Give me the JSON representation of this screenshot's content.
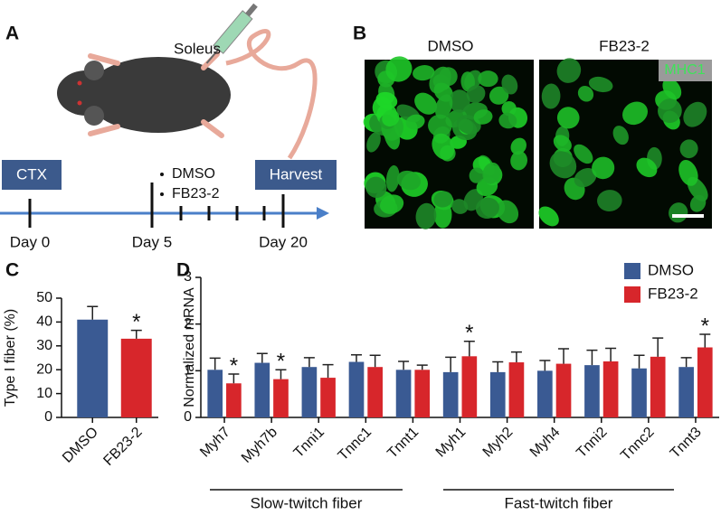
{
  "panels": {
    "a": {
      "label": "A",
      "injection_site": "Soleus",
      "timeline": {
        "start": "CTX",
        "end": "Harvest",
        "treatments": [
          "DMSO",
          "FB23-2"
        ],
        "days": [
          "Day 0",
          "Day 5",
          "Day 20"
        ]
      }
    },
    "b": {
      "label": "B",
      "columns": [
        "DMSO",
        "FB23-2"
      ],
      "stain": "MHC1"
    }
  },
  "chart_data": [
    {
      "type": "bar",
      "panel_label": "C",
      "y_label": "Type I fiber (%)",
      "categories": [
        "DMSO",
        "FB23-2"
      ],
      "values": [
        41,
        33
      ],
      "errors": [
        5.5,
        3.5
      ],
      "colors": [
        "#3a5a93",
        "#d7262b"
      ],
      "annotations": [
        null,
        "*"
      ],
      "ylim": [
        0,
        50
      ],
      "yticks": [
        0,
        10,
        20,
        30,
        40,
        50
      ]
    },
    {
      "type": "bar",
      "panel_label": "D",
      "y_label": "Normalized mRNA",
      "categories": [
        "Myh7",
        "Myh7b",
        "Tnni1",
        "Tnnc1",
        "Tnnt1",
        "Myh1",
        "Myh2",
        "Myh4",
        "Tnni2",
        "Tnnc2",
        "Tnnt3"
      ],
      "series": [
        {
          "name": "DMSO",
          "color": "#3a5a93",
          "values": [
            1.02,
            1.17,
            1.08,
            1.19,
            1.02,
            0.97,
            0.97,
            1.0,
            1.12,
            1.05,
            1.08
          ],
          "errors": [
            0.25,
            0.2,
            0.2,
            0.15,
            0.18,
            0.32,
            0.22,
            0.22,
            0.32,
            0.28,
            0.2
          ],
          "annotations": [
            null,
            null,
            null,
            null,
            null,
            null,
            null,
            null,
            null,
            null,
            null
          ]
        },
        {
          "name": "FB23-2",
          "color": "#d7262b",
          "values": [
            0.73,
            0.82,
            0.85,
            1.08,
            1.02,
            1.31,
            1.18,
            1.15,
            1.2,
            1.3,
            1.5
          ],
          "errors": [
            0.2,
            0.2,
            0.28,
            0.25,
            0.1,
            0.32,
            0.22,
            0.32,
            0.28,
            0.4,
            0.28
          ],
          "annotations": [
            "*",
            "*",
            null,
            null,
            null,
            "*",
            null,
            null,
            null,
            null,
            "*"
          ]
        }
      ],
      "groups": [
        {
          "label": "Slow-twitch fiber"
        },
        {
          "label": "Fast-twitch fiber"
        }
      ],
      "legend": "upper right",
      "ylim": [
        0,
        3
      ],
      "yticks": [
        0,
        1,
        2,
        3
      ]
    }
  ]
}
